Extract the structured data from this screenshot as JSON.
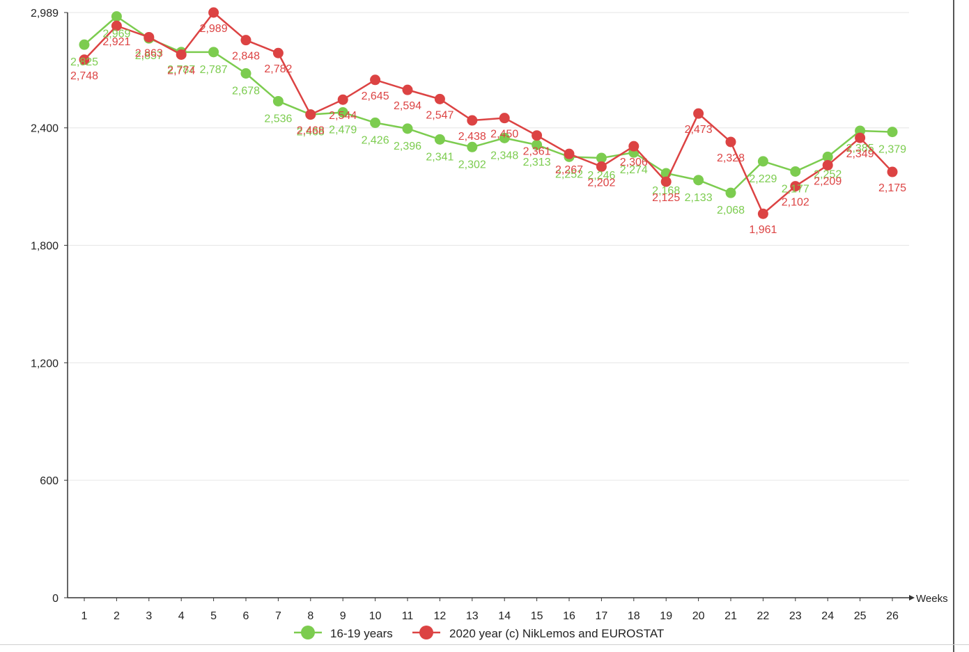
{
  "chart_data": {
    "type": "line",
    "x_categories": [
      "1",
      "2",
      "3",
      "4",
      "5",
      "6",
      "7",
      "8",
      "9",
      "10",
      "11",
      "12",
      "13",
      "14",
      "15",
      "16",
      "17",
      "18",
      "19",
      "20",
      "21",
      "22",
      "23",
      "24",
      "25",
      "26"
    ],
    "xlabel": "Weeks",
    "ylabel": "",
    "yticks": [
      "0",
      "600",
      "1,200",
      "1,800",
      "2,400",
      "2,989"
    ],
    "ytick_values": [
      0,
      600,
      1200,
      1800,
      2400,
      2989
    ],
    "ylim": [
      0,
      2989
    ],
    "grid": true,
    "legend_position": "bottom",
    "series": [
      {
        "name": "16-19 years",
        "color": "#7ccc4f",
        "values": [
          2825,
          2969,
          2857,
          2787,
          2787,
          2678,
          2536,
          2468,
          2479,
          2426,
          2396,
          2341,
          2302,
          2348,
          2313,
          2252,
          2246,
          2274,
          2168,
          2133,
          2068,
          2229,
          2177,
          2252,
          2385,
          2379
        ],
        "labels": [
          "2,825",
          "2,969",
          "2,857",
          "2,787",
          "2,787",
          "2,678",
          "2,536",
          "2,468",
          "2,479",
          "2,426",
          "2,396",
          "2,341",
          "2,302",
          "2,348",
          "2,313",
          "2,252",
          "2,246",
          "2,274",
          "2,168",
          "2,133",
          "2,068",
          "2,229",
          "2,177",
          "2,252",
          "2,385",
          "2,379"
        ]
      },
      {
        "name": "2020 year (c) NikLemos and EUROSTAT",
        "color": "#dc4343",
        "values": [
          2748,
          2921,
          2863,
          2774,
          2989,
          2848,
          2782,
          2468,
          2544,
          2645,
          2594,
          2547,
          2438,
          2450,
          2361,
          2267,
          2202,
          2306,
          2125,
          2473,
          2328,
          1961,
          2102,
          2209,
          2349,
          2175
        ],
        "labels": [
          "2,748",
          "2,921",
          "2,863",
          "2,774",
          "2,989",
          "2,848",
          "2,782",
          "2,468",
          "2,544",
          "2,645",
          "2,594",
          "2,547",
          "2,438",
          "2,450",
          "2,361",
          "2,267",
          "2,202",
          "2,306",
          "2,125",
          "2,473",
          "2,328",
          "1,961",
          "2,102",
          "2,209",
          "2,349",
          "2,175"
        ]
      }
    ]
  }
}
